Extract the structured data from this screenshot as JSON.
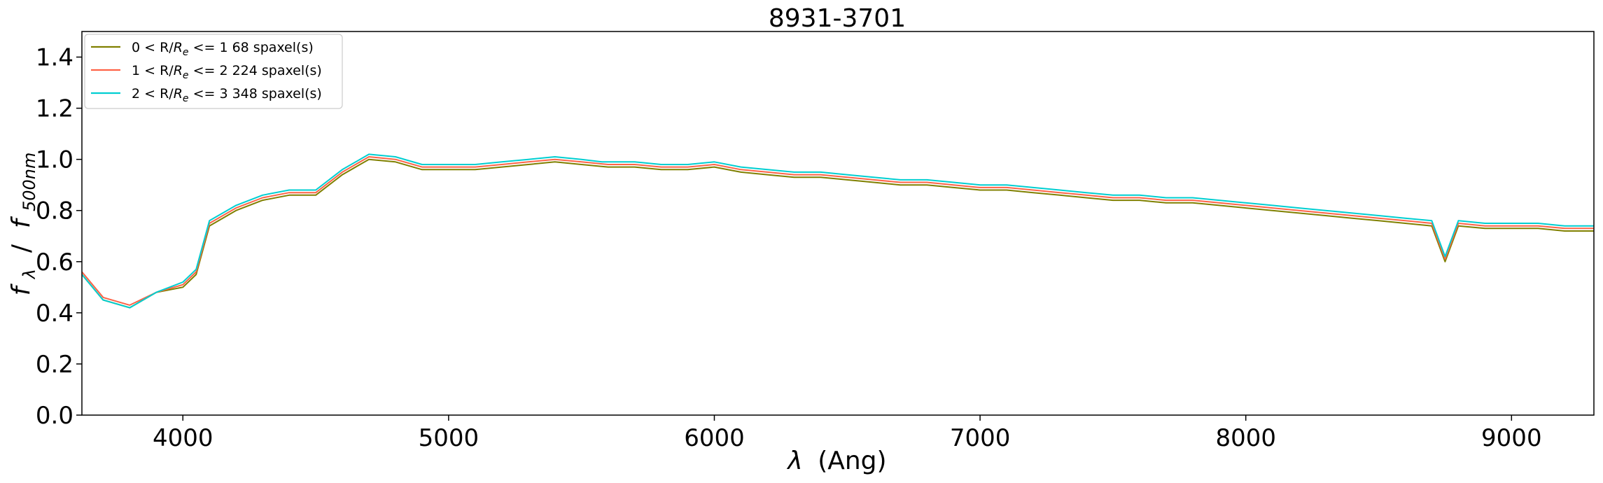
{
  "chart_data": {
    "type": "line",
    "title": "8931-3701",
    "xlabel_symbol": "λ",
    "xlabel_unit": "(Ang)",
    "ylabel_main": "f",
    "ylabel_main_sub": "λ",
    "ylabel_sep": " / ",
    "ylabel_ref": "f",
    "ylabel_ref_sub": "500nm",
    "xlim": [
      3620,
      9310
    ],
    "ylim": [
      0.0,
      1.5
    ],
    "xticks": [
      4000,
      5000,
      6000,
      7000,
      8000,
      9000
    ],
    "xtick_labels": [
      "4000",
      "5000",
      "6000",
      "7000",
      "8000",
      "9000"
    ],
    "yticks": [
      0.0,
      0.2,
      0.4,
      0.6,
      0.8,
      1.0,
      1.2,
      1.4
    ],
    "ytick_labels": [
      "0.0",
      "0.2",
      "0.4",
      "0.6",
      "0.8",
      "1.0",
      "1.2",
      "1.4"
    ],
    "grid": false,
    "legend_position": "top-left",
    "series": [
      {
        "label_pre": "0 < R/",
        "label_R": "R",
        "label_sub": "e",
        "label_post": " <= 1 68 spaxel(s)",
        "color": "#808000",
        "x": [
          3620,
          3700,
          3800,
          3900,
          4000,
          4050,
          4100,
          4200,
          4300,
          4400,
          4500,
          4600,
          4700,
          4800,
          4900,
          5000,
          5100,
          5200,
          5300,
          5400,
          5500,
          5600,
          5700,
          5800,
          5900,
          6000,
          6100,
          6200,
          6300,
          6400,
          6500,
          6600,
          6700,
          6800,
          6900,
          7000,
          7100,
          7200,
          7300,
          7400,
          7500,
          7600,
          7700,
          7800,
          7900,
          8000,
          8100,
          8200,
          8300,
          8400,
          8500,
          8600,
          8700,
          8750,
          8800,
          8900,
          9000,
          9100,
          9200,
          9310
        ],
        "y": [
          0.55,
          0.45,
          0.42,
          0.48,
          0.5,
          0.55,
          0.74,
          0.8,
          0.84,
          0.86,
          0.86,
          0.94,
          1.0,
          0.99,
          0.96,
          0.96,
          0.96,
          0.97,
          0.98,
          0.99,
          0.98,
          0.97,
          0.97,
          0.96,
          0.96,
          0.97,
          0.95,
          0.94,
          0.93,
          0.93,
          0.92,
          0.91,
          0.9,
          0.9,
          0.89,
          0.88,
          0.88,
          0.87,
          0.86,
          0.85,
          0.84,
          0.84,
          0.83,
          0.83,
          0.82,
          0.81,
          0.8,
          0.79,
          0.78,
          0.77,
          0.76,
          0.75,
          0.74,
          0.6,
          0.74,
          0.73,
          0.73,
          0.73,
          0.72,
          0.72
        ]
      },
      {
        "label_pre": "1 < R/",
        "label_R": "R",
        "label_sub": "e",
        "label_post": " <= 2 224 spaxel(s)",
        "color": "#ff6347",
        "x": [
          3620,
          3700,
          3800,
          3900,
          4000,
          4050,
          4100,
          4200,
          4300,
          4400,
          4500,
          4600,
          4700,
          4800,
          4900,
          5000,
          5100,
          5200,
          5300,
          5400,
          5500,
          5600,
          5700,
          5800,
          5900,
          6000,
          6100,
          6200,
          6300,
          6400,
          6500,
          6600,
          6700,
          6800,
          6900,
          7000,
          7100,
          7200,
          7300,
          7400,
          7500,
          7600,
          7700,
          7800,
          7900,
          8000,
          8100,
          8200,
          8300,
          8400,
          8500,
          8600,
          8700,
          8750,
          8800,
          8900,
          9000,
          9100,
          9200,
          9310
        ],
        "y": [
          0.56,
          0.46,
          0.43,
          0.48,
          0.51,
          0.56,
          0.75,
          0.81,
          0.85,
          0.87,
          0.87,
          0.95,
          1.01,
          1.0,
          0.97,
          0.97,
          0.97,
          0.98,
          0.99,
          1.0,
          0.99,
          0.98,
          0.98,
          0.97,
          0.97,
          0.98,
          0.96,
          0.95,
          0.94,
          0.94,
          0.93,
          0.92,
          0.91,
          0.91,
          0.9,
          0.89,
          0.89,
          0.88,
          0.87,
          0.86,
          0.85,
          0.85,
          0.84,
          0.84,
          0.83,
          0.82,
          0.81,
          0.8,
          0.79,
          0.78,
          0.77,
          0.76,
          0.75,
          0.61,
          0.75,
          0.74,
          0.74,
          0.74,
          0.73,
          0.73
        ]
      },
      {
        "label_pre": "2 < R/",
        "label_R": "R",
        "label_sub": "e",
        "label_post": " <= 3 348 spaxel(s)",
        "color": "#00ced1",
        "x": [
          3620,
          3700,
          3800,
          3900,
          4000,
          4050,
          4100,
          4200,
          4300,
          4400,
          4500,
          4600,
          4700,
          4800,
          4900,
          5000,
          5100,
          5200,
          5300,
          5400,
          5500,
          5577,
          5600,
          5700,
          5800,
          5900,
          6000,
          6100,
          6200,
          6300,
          6400,
          6500,
          6600,
          6700,
          6800,
          6900,
          7000,
          7100,
          7200,
          7300,
          7400,
          7500,
          7600,
          7700,
          7800,
          7900,
          8000,
          8100,
          8200,
          8300,
          8400,
          8500,
          8600,
          8700,
          8750,
          8800,
          8900,
          9000,
          9100,
          9200,
          9310
        ],
        "y": [
          0.55,
          0.45,
          0.42,
          0.48,
          0.52,
          0.57,
          0.76,
          0.82,
          0.86,
          0.88,
          0.88,
          0.96,
          1.02,
          1.01,
          0.98,
          0.98,
          0.98,
          0.99,
          1.0,
          1.01,
          1.0,
          0.99,
          0.99,
          0.99,
          0.98,
          0.98,
          0.99,
          0.97,
          0.96,
          0.95,
          0.95,
          0.94,
          0.93,
          0.92,
          0.92,
          0.91,
          0.9,
          0.9,
          0.89,
          0.88,
          0.87,
          0.86,
          0.86,
          0.85,
          0.85,
          0.84,
          0.83,
          0.82,
          0.81,
          0.8,
          0.79,
          0.78,
          0.77,
          0.76,
          0.62,
          0.76,
          0.75,
          0.75,
          0.75,
          0.74,
          0.74
        ]
      }
    ]
  }
}
